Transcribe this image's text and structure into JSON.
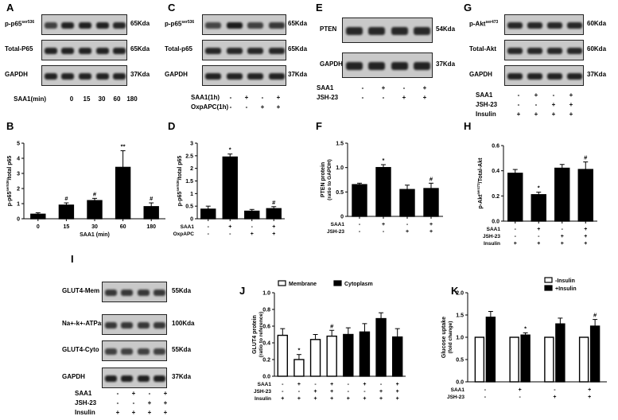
{
  "panels": {
    "A": {
      "letter": "A",
      "rows": [
        {
          "label": "p-p65",
          "sup": "ser536",
          "kda": "65Kda"
        },
        {
          "label": "Total-P65",
          "sup": "",
          "kda": "65Kda"
        },
        {
          "label": "GAPDH",
          "sup": "",
          "kda": "37Kda"
        }
      ],
      "condition_label": "SAA1(min)",
      "condition_values": [
        "0",
        "15",
        "30",
        "60",
        "180"
      ]
    },
    "C": {
      "letter": "C",
      "rows": [
        {
          "label": "p-p65",
          "sup": "ser536",
          "kda": "65Kda"
        },
        {
          "label": "Total-p65",
          "sup": "",
          "kda": "65Kda"
        },
        {
          "label": "GAPDH",
          "sup": "",
          "kda": "37Kda"
        }
      ],
      "conditions": [
        {
          "label": "SAA1(1h)",
          "signs": [
            "-",
            "+",
            "-",
            "+"
          ]
        },
        {
          "label": "OxpAPC(1h)",
          "signs": [
            "-",
            "-",
            "+",
            "+"
          ]
        }
      ]
    },
    "E": {
      "letter": "E",
      "rows": [
        {
          "label": "PTEN",
          "sup": "",
          "kda": "54Kda"
        },
        {
          "label": "GAPDH",
          "sup": "",
          "kda": "37Kda"
        }
      ],
      "conditions": [
        {
          "label": "SAA1",
          "signs": [
            "-",
            "+",
            "-",
            "+"
          ]
        },
        {
          "label": "JSH-23",
          "signs": [
            "-",
            "-",
            "+",
            "+"
          ]
        }
      ]
    },
    "G": {
      "letter": "G",
      "rows": [
        {
          "label": "p-Akt",
          "sup": "ser473",
          "kda": "60Kda"
        },
        {
          "label": "Total-Akt",
          "sup": "",
          "kda": "60Kda"
        },
        {
          "label": "GAPDH",
          "sup": "",
          "kda": "37Kda"
        }
      ],
      "conditions": [
        {
          "label": "SAA1",
          "signs": [
            "-",
            "+",
            "-",
            "+"
          ]
        },
        {
          "label": "JSH-23",
          "signs": [
            "-",
            "-",
            "+",
            "+"
          ]
        },
        {
          "label": "Insulin",
          "signs": [
            "+",
            "+",
            "+",
            "+"
          ]
        }
      ]
    },
    "I": {
      "letter": "I",
      "rows": [
        {
          "label": "GLUT4-Mem",
          "sup": "",
          "kda": "55Kda"
        },
        {
          "label": "Na+-k+-ATPase",
          "sup": "",
          "kda": "100Kda"
        },
        {
          "label": "GLUT4-Cyto",
          "sup": "",
          "kda": "55Kda"
        },
        {
          "label": "GAPDH",
          "sup": "",
          "kda": "37Kda"
        }
      ],
      "conditions": [
        {
          "label": "SAA1",
          "signs": [
            "-",
            "+",
            "-",
            "+"
          ]
        },
        {
          "label": "JSH-23",
          "signs": [
            "-",
            "-",
            "+",
            "+"
          ]
        },
        {
          "label": "Insulin",
          "signs": [
            "+",
            "+",
            "+",
            "+"
          ]
        }
      ]
    }
  },
  "chart_data": [
    {
      "id": "B",
      "letter": "B",
      "type": "bar",
      "categories": [
        "0",
        "15",
        "30",
        "60",
        "180"
      ],
      "values": [
        0.3,
        0.9,
        1.2,
        3.4,
        0.8
      ],
      "errors": [
        0.1,
        0.15,
        0.15,
        1.1,
        0.25
      ],
      "annotations": [
        "",
        "#",
        "#",
        "**",
        "#"
      ],
      "ylabel_main": "p-p65",
      "ylabel_sup": "ser536",
      "ylabel_rest": "/total p65",
      "xlabel": "SAA1 (min)",
      "ylim": [
        0,
        5
      ],
      "yticks": [
        "0",
        "1",
        "2",
        "3",
        "4",
        "5"
      ]
    },
    {
      "id": "D",
      "letter": "D",
      "type": "bar",
      "values": [
        0.38,
        2.45,
        0.3,
        0.4
      ],
      "errors": [
        0.12,
        0.12,
        0.07,
        0.08
      ],
      "annotations": [
        "",
        "*",
        "",
        "#"
      ],
      "ylabel_main": "p-p65",
      "ylabel_sup": "ser536",
      "ylabel_rest": "/total p65",
      "conditions": [
        {
          "label": "SAA1",
          "signs": [
            "-",
            "+",
            "-",
            "+"
          ]
        },
        {
          "label": "OxpAPC",
          "signs": [
            "-",
            "-",
            "+",
            "+"
          ]
        }
      ],
      "ylim": [
        0,
        3
      ],
      "yticks": [
        "0",
        "0.5",
        "1",
        "1.5",
        "2",
        "2.5",
        "3"
      ]
    },
    {
      "id": "F",
      "letter": "F",
      "type": "bar",
      "values": [
        0.65,
        1.0,
        0.55,
        0.57
      ],
      "errors": [
        0.03,
        0.06,
        0.09,
        0.11
      ],
      "annotations": [
        "",
        "*",
        "",
        "#"
      ],
      "ylabel_main": "PTEN protein",
      "ylabel_line2": "(ratio to GAPDH)",
      "conditions": [
        {
          "label": "SAA1",
          "signs": [
            "-",
            "+",
            "-",
            "+"
          ]
        },
        {
          "label": "JSH-23",
          "signs": [
            "-",
            "-",
            "+",
            "+"
          ]
        }
      ],
      "ylim": [
        0,
        1.5
      ],
      "yticks": [
        "0",
        "0.5",
        "1.0",
        "1.5"
      ]
    },
    {
      "id": "H",
      "letter": "H",
      "type": "bar",
      "values": [
        0.38,
        0.21,
        0.42,
        0.41
      ],
      "errors": [
        0.03,
        0.02,
        0.03,
        0.06
      ],
      "annotations": [
        "",
        "*",
        "",
        "#"
      ],
      "ylabel_main": "p-Akt",
      "ylabel_sup": "ser473",
      "ylabel_rest": "/Total-Akt",
      "conditions": [
        {
          "label": "SAA1",
          "signs": [
            "-",
            "+",
            "-",
            "+"
          ]
        },
        {
          "label": "JSH-23",
          "signs": [
            "-",
            "-",
            "+",
            "+"
          ]
        },
        {
          "label": "Insulin",
          "signs": [
            "+",
            "+",
            "+",
            "+"
          ]
        }
      ],
      "ylim": [
        0,
        0.6
      ],
      "yticks": [
        "0.0",
        "0.2",
        "0.4",
        "0.6"
      ]
    },
    {
      "id": "J",
      "letter": "J",
      "type": "bar",
      "series": [
        {
          "name": "Membrane",
          "values": [
            0.49,
            0.2,
            0.44,
            0.48
          ],
          "errors": [
            0.08,
            0.06,
            0.06,
            0.07
          ],
          "annotations": [
            "",
            "*",
            "",
            "#"
          ],
          "color": "#ffffff"
        },
        {
          "name": "Cytoplasm",
          "values": [
            0.5,
            0.53,
            0.69,
            0.47
          ],
          "errors": [
            0.08,
            0.1,
            0.07,
            0.1
          ],
          "annotations": [
            "",
            "",
            "",
            ""
          ],
          "color": "#000000"
        }
      ],
      "ylabel_main": "GLUT4 protein",
      "ylabel_line2": "(ratio to reference)",
      "conditions": [
        {
          "label": "SAA1",
          "signs": [
            "-",
            "+",
            "-",
            "+",
            "-",
            "+",
            "-",
            "+"
          ]
        },
        {
          "label": "JSH-23",
          "signs": [
            "-",
            "-",
            "+",
            "+",
            "-",
            "-",
            "+",
            "+"
          ]
        },
        {
          "label": "Insulin",
          "signs": [
            "+",
            "+",
            "+",
            "+",
            "+",
            "+",
            "+",
            "+"
          ]
        }
      ],
      "legend": "top",
      "ylim": [
        0,
        1.0
      ],
      "yticks": [
        "0.0",
        "0.2",
        "0.4",
        "0.6",
        "0.8",
        "1.0"
      ]
    },
    {
      "id": "K",
      "letter": "K",
      "type": "bar",
      "series": [
        {
          "name": "-Insulin",
          "values": [
            1.0,
            1.0,
            1.0,
            1.0
          ],
          "errors": [
            0,
            0,
            0,
            0
          ],
          "annotations": [
            "",
            "",
            "",
            ""
          ],
          "color": "#ffffff"
        },
        {
          "name": "+Insulin",
          "values": [
            1.45,
            1.05,
            1.3,
            1.25
          ],
          "errors": [
            0.13,
            0.05,
            0.13,
            0.15
          ],
          "annotations": [
            "",
            "*",
            "",
            "#"
          ],
          "color": "#000000"
        }
      ],
      "ylabel_main": "Glucose uptake",
      "ylabel_line2": "(fold change)",
      "conditions": [
        {
          "label": "SAA1",
          "signs": [
            "-",
            "+",
            "-",
            "+"
          ]
        },
        {
          "label": "JSH-23",
          "signs": [
            "-",
            "-",
            "+",
            "+"
          ]
        }
      ],
      "legend": "top-right",
      "ylim": [
        0,
        2.0
      ],
      "yticks": [
        "0.0",
        "0.5",
        "1.0",
        "1.5",
        "2.0"
      ]
    }
  ]
}
